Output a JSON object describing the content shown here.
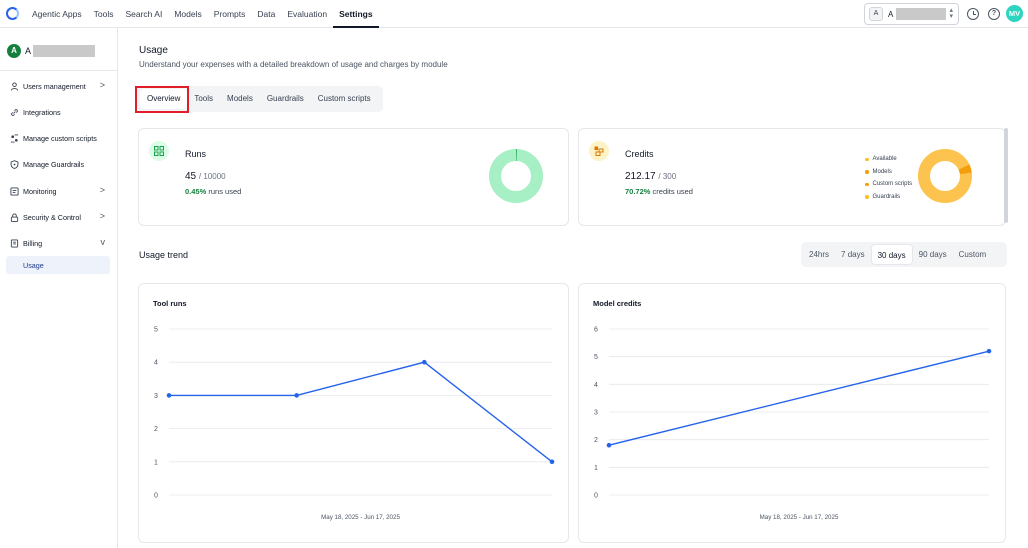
{
  "nav": {
    "items": [
      "Agentic Apps",
      "Tools",
      "Search AI",
      "Models",
      "Prompts",
      "Data",
      "Evaluation",
      "Settings"
    ],
    "active_index": 7
  },
  "org": {
    "initial": "A",
    "name": "A"
  },
  "user": {
    "initials": "MV",
    "color": "#2dd4bf"
  },
  "sidebar": {
    "account_initial": "A",
    "account_name": "A",
    "items": [
      {
        "label": "Users management",
        "icon": "user-icon",
        "chevron": ">"
      },
      {
        "label": "Integrations",
        "icon": "link-icon",
        "chevron": ""
      },
      {
        "label": "Manage custom scripts",
        "icon": "scripts-icon",
        "chevron": ""
      },
      {
        "label": "Manage Guardrails",
        "icon": "shield-icon",
        "chevron": ""
      },
      {
        "label": "Monitoring",
        "icon": "monitor-icon",
        "chevron": ">"
      },
      {
        "label": "Security & Control",
        "icon": "lock-icon",
        "chevron": ">"
      },
      {
        "label": "Billing",
        "icon": "billing-icon",
        "chevron": "v"
      }
    ],
    "sub_item": "Usage"
  },
  "page": {
    "title": "Usage",
    "subtitle": "Understand your expenses with a detailed breakdown of usage and charges by module"
  },
  "tabs": [
    "Overview",
    "Tools",
    "Models",
    "Guardrails",
    "Custom scripts"
  ],
  "runs": {
    "title": "Runs",
    "value": "45",
    "total": "/ 10000",
    "pct": "0.45%",
    "pct_label": "runs used",
    "used_fraction": 0.0045,
    "color": "#a7efc4",
    "accent": "#16a34a"
  },
  "credits": {
    "title": "Credits",
    "value": "212.17",
    "total": "/ 300",
    "pct": "70.72%",
    "pct_label": "credits used",
    "legend": [
      {
        "label": "Available",
        "color": "#fbbf24"
      },
      {
        "label": "Models",
        "color": "#f59e0b"
      },
      {
        "label": "Custom scripts",
        "color": "#f59e0b"
      },
      {
        "label": "Guardrails",
        "color": "#fbbf24"
      }
    ],
    "donut_color": "#fcc44f",
    "models_fraction": 0.05
  },
  "trend": {
    "title": "Usage trend",
    "ranges": [
      "24hrs",
      "7 days",
      "30 days",
      "90 days",
      "Custom"
    ],
    "active_range": 2
  },
  "chart_data": [
    {
      "type": "line",
      "title": "Tool runs",
      "xlabel": "May 18, 2025 - Jun 17, 2025",
      "ylabel": "",
      "ylim": [
        0,
        5
      ],
      "yticks": [
        0,
        1,
        2,
        3,
        4,
        5
      ],
      "x": [
        0,
        1,
        2,
        3
      ],
      "values": [
        3,
        3,
        4,
        1
      ],
      "color": "#2563eb"
    },
    {
      "type": "line",
      "title": "Model credits",
      "xlabel": "May 18, 2025 - Jun 17, 2025",
      "ylabel": "",
      "ylim": [
        0,
        6
      ],
      "yticks": [
        0,
        1,
        2,
        3,
        4,
        5,
        6
      ],
      "x": [
        0,
        1
      ],
      "values": [
        1.8,
        5.2
      ],
      "color": "#2563eb"
    }
  ]
}
